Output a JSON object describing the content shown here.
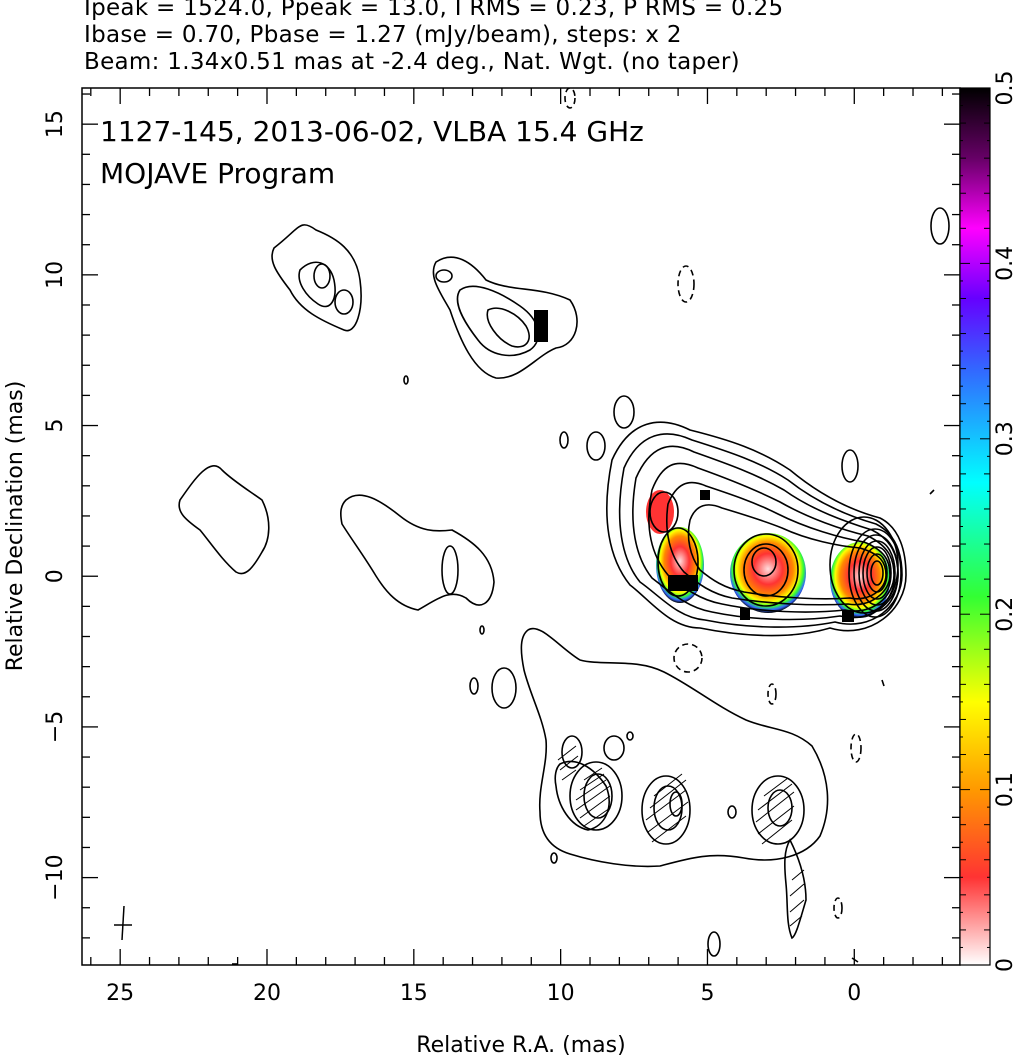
{
  "header": {
    "line1": "Ipeak = 1524.0, Ppeak = 13.0, I RMS = 0.23, P RMS = 0.25",
    "line2": "Ibase = 0.70, Pbase = 1.27 (mJy/beam), steps: x 2",
    "line3": "Beam: 1.34x0.51 mas at -2.4 deg., Nat. Wgt. (no taper)"
  },
  "chart_data": {
    "type": "contour",
    "title": "1127-145, 2013-06-02, VLBA 15.4 GHz",
    "subtitle": "MOJAVE Program",
    "xlabel": "Relative R.A. (mas)",
    "ylabel": "Relative Declination (mas)",
    "xlim": [
      26.3,
      -3.6
    ],
    "ylim": [
      -12.9,
      16.2
    ],
    "x_ticks": [
      25,
      20,
      15,
      10,
      5,
      0
    ],
    "y_ticks": [
      15,
      10,
      5,
      0,
      -5,
      -10
    ],
    "colorbar": {
      "range": [
        0,
        0.5
      ],
      "ticks": [
        0,
        0.1,
        0.2,
        0.3,
        0.4,
        0.5
      ],
      "colors": [
        "#ffffff",
        "#ff3333",
        "#ff9900",
        "#ffff00",
        "#33ff33",
        "#00ffff",
        "#3366ff",
        "#6600ff",
        "#ff00ff",
        "#660066",
        "#000000"
      ]
    },
    "core": {
      "x": 0,
      "y": 0
    },
    "jet_components": [
      {
        "x": 0.0,
        "y": 0.0
      },
      {
        "x": 4.0,
        "y": 0.0
      },
      {
        "x": 7.0,
        "y": 1.8
      },
      {
        "x": 9.5,
        "y": -7.5
      },
      {
        "x": 3.0,
        "y": -7.8
      }
    ]
  }
}
